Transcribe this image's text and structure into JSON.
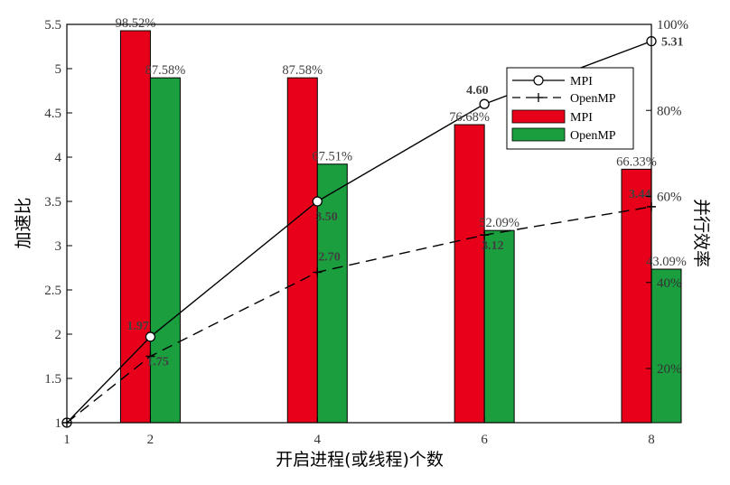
{
  "chart_data": {
    "type": "bar",
    "xlabel": "开启进程(或线程)个数",
    "ylabel": "加速比",
    "y2label": "并行效率",
    "x_ticks": [
      "1",
      "2",
      "4",
      "6",
      "8"
    ],
    "ylim": [
      1,
      5.5
    ],
    "y_ticks": [
      "1",
      "1.5",
      "2",
      "2.5",
      "3",
      "3.5",
      "4",
      "4.5",
      "5",
      "5.5"
    ],
    "y2_ticks": [
      "20%",
      "40%",
      "60%",
      "80%",
      "100%"
    ],
    "categories": [
      2,
      4,
      6,
      8
    ],
    "bar_series": [
      {
        "name": "MPI",
        "color": "#e8001a",
        "values": [
          98.52,
          87.58,
          76.68,
          66.33
        ],
        "labels": [
          "98.52%",
          "87.58%",
          "76.68%",
          "66.33%"
        ]
      },
      {
        "name": "OpenMP",
        "color": "#1a9e3e",
        "values": [
          87.58,
          67.51,
          52.09,
          43.09
        ],
        "labels": [
          "87.58%",
          "67.51%",
          "52.09%",
          "43.09%"
        ]
      }
    ],
    "line_series": [
      {
        "name": "MPI",
        "style": "solid",
        "marker": "circle",
        "x": [
          1,
          2,
          4,
          6,
          8
        ],
        "y": [
          1,
          1.97,
          3.5,
          4.6,
          5.31
        ],
        "labels": [
          "",
          "1.97",
          "3.50",
          "4.60",
          "5.31"
        ]
      },
      {
        "name": "OpenMP",
        "style": "dashed",
        "marker": "plus",
        "x": [
          1,
          2,
          4,
          6,
          8
        ],
        "y": [
          1,
          1.75,
          2.7,
          3.12,
          3.44
        ],
        "labels": [
          "",
          "1.75",
          "2.70",
          "3.12",
          "3.44"
        ]
      }
    ],
    "legend": {
      "position": "top-right",
      "entries": [
        "MPI",
        "OpenMP",
        "MPI",
        "OpenMP"
      ]
    },
    "grid": false
  }
}
